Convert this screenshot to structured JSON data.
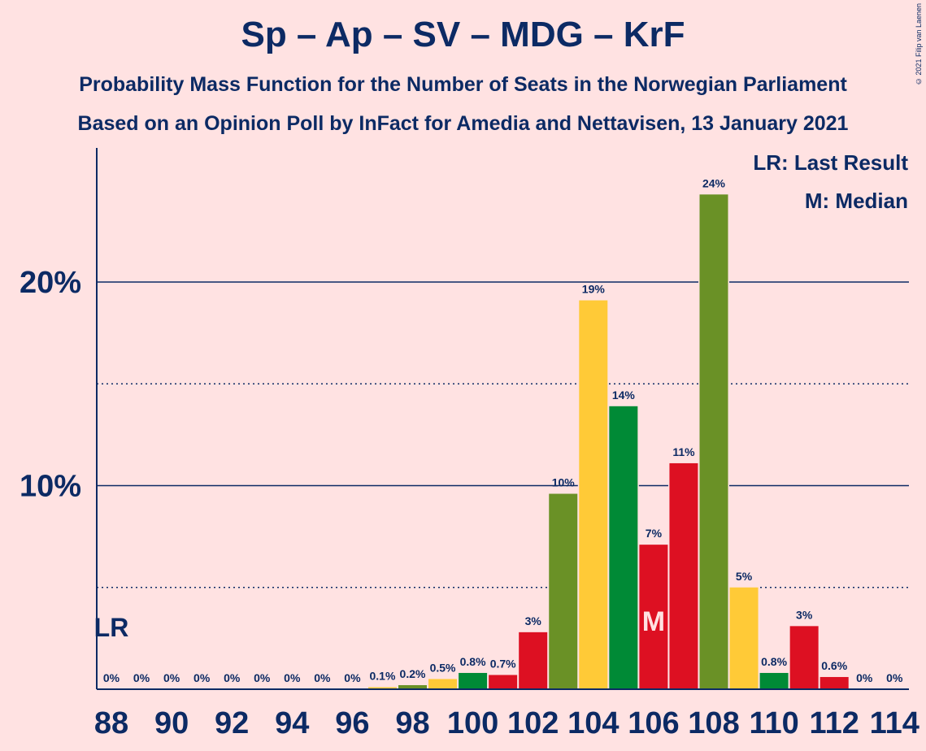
{
  "header": {
    "title": "Sp – Ap – SV – MDG – KrF",
    "subtitle1": "Probability Mass Function for the Number of Seats in the Norwegian Parliament",
    "subtitle2": "Based on an Opinion Poll by InFact for Amedia and Nettavisen, 13 January 2021",
    "copyright": "© 2021 Filip van Laenen"
  },
  "legend": {
    "last_result": "LR: Last Result",
    "median": "M: Median"
  },
  "chart_data": {
    "type": "bar",
    "x": [
      88,
      89,
      90,
      91,
      92,
      93,
      94,
      95,
      96,
      97,
      98,
      99,
      100,
      101,
      102,
      103,
      104,
      105,
      106,
      107,
      108,
      109,
      110,
      111,
      112,
      113,
      114
    ],
    "values": [
      0,
      0,
      0,
      0,
      0,
      0,
      0,
      0,
      0,
      0.1,
      0.2,
      0.5,
      0.8,
      0.7,
      2.8,
      9.6,
      19.1,
      13.9,
      7.1,
      11.1,
      24.3,
      5.0,
      0.8,
      3.1,
      0.6,
      0,
      0
    ],
    "labels": [
      "0%",
      "0%",
      "0%",
      "0%",
      "0%",
      "0%",
      "0%",
      "0%",
      "0%",
      "0.1%",
      "0.2%",
      "0.5%",
      "0.8%",
      "0.7%",
      "3%",
      "10%",
      "19%",
      "14%",
      "7%",
      "11%",
      "24%",
      "5%",
      "0.8%",
      "3%",
      "0.6%",
      "0%",
      "0%"
    ],
    "colors": [
      "#6A9126",
      "#FFCA37",
      "#008A36",
      "#DD1022",
      "#6A9126",
      "#FFCA37",
      "#008A36",
      "#DD1022",
      "#6A9126",
      "#FFCA37",
      "#6A9126",
      "#FFCA37",
      "#008A36",
      "#DD1022",
      "#DD1022",
      "#6A9126",
      "#FFCA37",
      "#008A36",
      "#DD1022",
      "#DD1022",
      "#6A9126",
      "#FFCA37",
      "#008A36",
      "#DD1022",
      "#DD1022",
      "#6A9126",
      "#FFCA37"
    ],
    "x_ticks": [
      88,
      90,
      92,
      94,
      96,
      98,
      100,
      102,
      104,
      106,
      108,
      110,
      112,
      114
    ],
    "y_ticks": [
      {
        "value": 10,
        "label": "10%"
      },
      {
        "value": 20,
        "label": "20%"
      }
    ],
    "y_minor_gridlines": [
      5,
      15
    ],
    "ylim": [
      0,
      26.5
    ],
    "last_result_seat": 88,
    "last_result_label": "LR",
    "median_seat": 106,
    "median_label": "M",
    "grid": true,
    "legend_position": "top-right",
    "colors_meta": {
      "axis": "#0C2A64",
      "background": "#FFE2E2"
    }
  }
}
